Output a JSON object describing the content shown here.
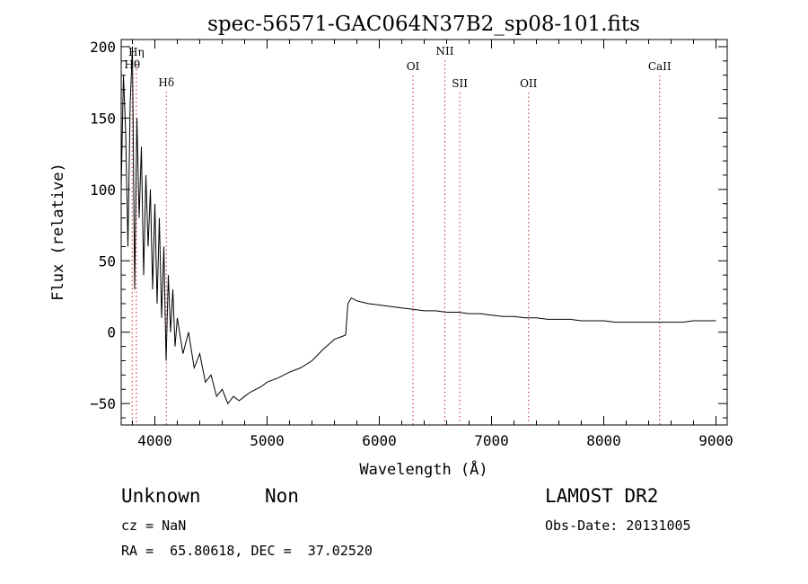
{
  "chart_data": {
    "type": "line",
    "title": "spec-56571-GAC064N37B2_sp08-101.fits",
    "xlabel": "Wavelength (Å)",
    "ylabel": "Flux (relative)",
    "xlim": [
      3700,
      9100
    ],
    "ylim": [
      -65,
      205
    ],
    "x_ticks": [
      4000,
      5000,
      6000,
      7000,
      8000,
      9000
    ],
    "y_ticks": [
      -50,
      0,
      50,
      100,
      150,
      200
    ],
    "grid": false,
    "line_color": "#000000",
    "marker_color": "#cc2222",
    "lines": [
      {
        "label": "Hθ",
        "wavelength": 3798
      },
      {
        "label": "Hη",
        "wavelength": 3835
      },
      {
        "label": "Hδ",
        "wavelength": 4102
      },
      {
        "label": "OI",
        "wavelength": 6300
      },
      {
        "label": "NII",
        "wavelength": 6584
      },
      {
        "label": "SII",
        "wavelength": 6717
      },
      {
        "label": "OII",
        "wavelength": 7330
      },
      {
        "label": "CaII",
        "wavelength": 8498
      }
    ],
    "series": [
      {
        "x": [
          3700,
          3720,
          3740,
          3760,
          3780,
          3800,
          3820,
          3840,
          3860,
          3880,
          3900,
          3920,
          3940,
          3960,
          3980,
          4000,
          4020,
          4040,
          4060,
          4080,
          4100,
          4120,
          4140,
          4160,
          4180,
          4200,
          4250,
          4300,
          4350,
          4400,
          4450,
          4500,
          4550,
          4600,
          4650,
          4700,
          4750,
          4800,
          4850,
          4900,
          4950,
          5000,
          5100,
          5200,
          5300,
          5400,
          5500,
          5600,
          5700,
          5720,
          5750,
          5800,
          5850,
          5900,
          6000,
          6100,
          6200,
          6300,
          6400,
          6500,
          6600,
          6700,
          6800,
          6900,
          7000,
          7100,
          7200,
          7300,
          7400,
          7500,
          7600,
          7700,
          7800,
          7900,
          8000,
          8100,
          8200,
          8300,
          8400,
          8500,
          8600,
          8700,
          8800,
          8900,
          9000
        ],
        "y": [
          100,
          180,
          140,
          60,
          160,
          200,
          30,
          150,
          80,
          130,
          40,
          110,
          60,
          100,
          30,
          90,
          20,
          80,
          10,
          60,
          -20,
          40,
          0,
          30,
          -10,
          10,
          -15,
          0,
          -25,
          -15,
          -35,
          -30,
          -45,
          -40,
          -50,
          -45,
          -48,
          -45,
          -42,
          -40,
          -38,
          -35,
          -32,
          -28,
          -25,
          -20,
          -12,
          -5,
          -2,
          20,
          24,
          22,
          21,
          20,
          19,
          18,
          17,
          16,
          15,
          15,
          14,
          14,
          13,
          13,
          12,
          11,
          11,
          10,
          10,
          9,
          9,
          9,
          8,
          8,
          8,
          7,
          7,
          7,
          7,
          7,
          7,
          7,
          8,
          8,
          8
        ]
      }
    ]
  },
  "info": {
    "object_class": "Unknown",
    "subclass": "Non",
    "survey": "LAMOST DR2",
    "cz": "cz = NaN",
    "obs_date": "Obs-Date: 20131005",
    "coords": "RA =  65.80618, DEC =  37.02520"
  }
}
